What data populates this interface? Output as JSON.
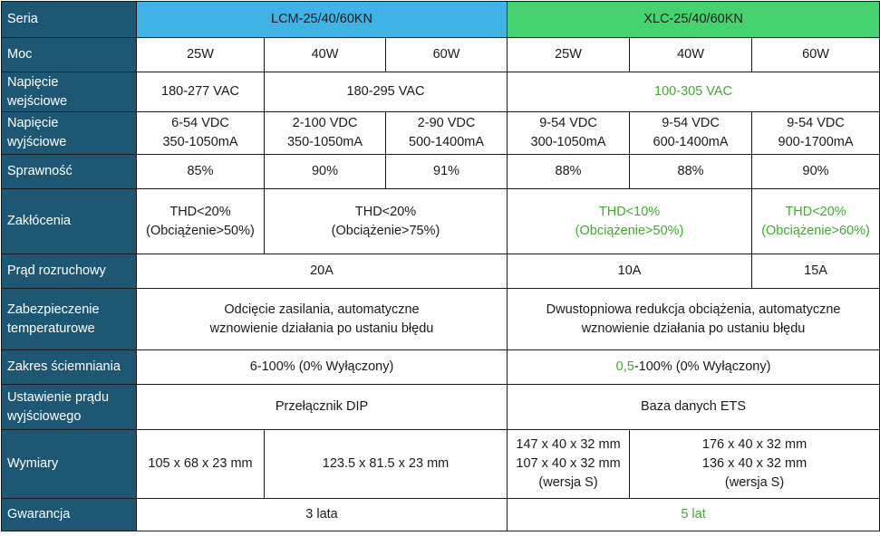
{
  "colors": {
    "header_bg": "#1e5774",
    "lcm_bg": "#3fb3e6",
    "xlc_bg": "#44d36e",
    "highlight_green": "#46a832"
  },
  "rows": {
    "seria": {
      "label": "Seria",
      "lcm": "LCM-25/40/60KN",
      "xlc": "XLC-25/40/60KN"
    },
    "moc": {
      "label": "Moc",
      "values": [
        "25W",
        "40W",
        "60W",
        "25W",
        "40W",
        "60W"
      ]
    },
    "napiecie_wej": {
      "label_1": "Napięcie",
      "label_2": "wejściowe",
      "lcm_25": "180-277 VAC",
      "lcm_40_60": "180-295 VAC",
      "xlc": "100-305 VAC"
    },
    "napiecie_wyj": {
      "label_1": "Napięcie",
      "label_2": "wyjściowe",
      "cells": [
        {
          "l1": "6-54 VDC",
          "l2": "350-1050mA"
        },
        {
          "l1": "2-100 VDC",
          "l2": "350-1050mA"
        },
        {
          "l1": "2-90 VDC",
          "l2": "500-1400mA"
        },
        {
          "l1": "9-54 VDC",
          "l2": "300-1050mA"
        },
        {
          "l1": "9-54 VDC",
          "l2": "600-1400mA"
        },
        {
          "l1": "9-54 VDC",
          "l2": "900-1700mA"
        }
      ]
    },
    "sprawnosc": {
      "label": "Sprawność",
      "values": [
        "85%",
        "90%",
        "91%",
        "88%",
        "88%",
        "90%"
      ]
    },
    "zaklocenia": {
      "label": "Zakłócenia",
      "lcm_25": {
        "l1": "THD<20%",
        "l2": "(Obciążenie>50%)"
      },
      "lcm_40_60": {
        "l1": "THD<20%",
        "l2": "(Obciążenie>75%)"
      },
      "xlc_25_40": {
        "l1": "THD<10%",
        "l2": "(Obciążenie>50%)"
      },
      "xlc_60": {
        "l1": "THD<20%",
        "l2": "(Obciążenie>60%)"
      }
    },
    "prad_rozruchowy": {
      "label": "Prąd rozruchowy",
      "lcm": "20A",
      "xlc_25_40": "10A",
      "xlc_60": "15A"
    },
    "zabezpieczenie": {
      "label_1": "Zabezpieczenie",
      "label_2": "temperaturowe",
      "lcm": {
        "l1": "Odcięcie zasilania, automatyczne",
        "l2": "wznowienie działania po ustaniu błędu"
      },
      "xlc": {
        "l1": "Dwustopniowa redukcja obciążenia, automatyczne",
        "l2": "wznowienie działania po ustaniu błędu"
      }
    },
    "sciemnianie": {
      "label": "Zakres ściemniania",
      "lcm": "6-100% (0% Wyłączony)",
      "xlc_green": "0,5",
      "xlc_rest": "-100% (0% Wyłączony)"
    },
    "ustawienie": {
      "label_1": "Ustawienie prądu",
      "label_2": "wyjściowego",
      "lcm": "Przełącznik DIP",
      "xlc": "Baza danych ETS"
    },
    "wymiary": {
      "label": "Wymiary",
      "lcm_25": "105 x 68 x 23 mm",
      "lcm_40_60": "123.5 x 81.5 x 23 mm",
      "xlc_25": {
        "l1": "147 x 40 x 32 mm",
        "l2": "107 x 40 x 32 mm",
        "l3": "(wersja S)"
      },
      "xlc_40_60": {
        "l1": "176 x 40 x 32 mm",
        "l2": "136 x 40 x 32 mm",
        "l3": "(wersja S)"
      }
    },
    "gwarancja": {
      "label": "Gwarancja",
      "lcm": "3 lata",
      "xlc": "5 lat"
    }
  }
}
